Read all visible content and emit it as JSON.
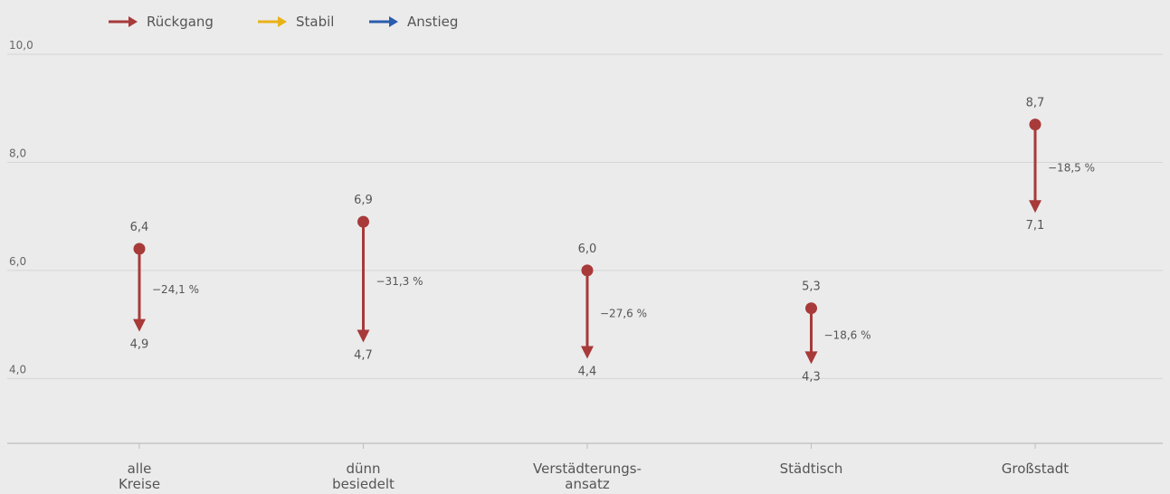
{
  "chart_data": {
    "type": "dumbbell",
    "legend": [
      {
        "label": "Rückgang",
        "color": "#a83a3a"
      },
      {
        "label": "Stabil",
        "color": "#e8b21b"
      },
      {
        "label": "Anstieg",
        "color": "#2b5cad"
      }
    ],
    "yticks": [
      {
        "value": 4,
        "label": "4,0"
      },
      {
        "value": 6,
        "label": "6,0"
      },
      {
        "value": 8,
        "label": "8,0"
      },
      {
        "value": 10,
        "label": "10,0"
      }
    ],
    "ylim": [
      2.8,
      10.0
    ],
    "grid": true,
    "categories": [
      {
        "label": [
          "alle",
          "Kreise"
        ],
        "start": 6.4,
        "end": 4.9,
        "start_label": "6,4",
        "end_label": "4,9",
        "change": "−24,1 %",
        "trend": "Rückgang"
      },
      {
        "label": [
          "dünn",
          "besiedelt"
        ],
        "start": 6.9,
        "end": 4.7,
        "start_label": "6,9",
        "end_label": "4,7",
        "change": "−31,3 %",
        "trend": "Rückgang"
      },
      {
        "label": [
          "Verstädterungs-",
          "ansatz"
        ],
        "start": 6.0,
        "end": 4.4,
        "start_label": "6,0",
        "end_label": "4,4",
        "change": "−27,6 %",
        "trend": "Rückgang"
      },
      {
        "label": [
          "Städtisch"
        ],
        "start": 5.3,
        "end": 4.3,
        "start_label": "5,3",
        "end_label": "4,3",
        "change": "−18,6 %",
        "trend": "Rückgang"
      },
      {
        "label": [
          "Großstadt"
        ],
        "start": 8.7,
        "end": 7.1,
        "start_label": "8,7",
        "end_label": "7,1",
        "change": "−18,5 %",
        "trend": "Rückgang"
      }
    ]
  }
}
